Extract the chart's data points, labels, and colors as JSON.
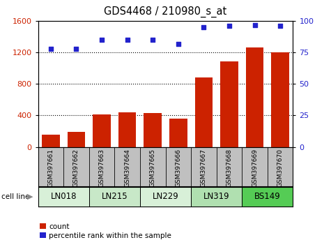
{
  "title": "GDS4468 / 210980_s_at",
  "samples": [
    "GSM397661",
    "GSM397662",
    "GSM397663",
    "GSM397664",
    "GSM397665",
    "GSM397666",
    "GSM397667",
    "GSM397668",
    "GSM397669",
    "GSM397670"
  ],
  "counts": [
    155,
    190,
    415,
    440,
    430,
    360,
    880,
    1090,
    1260,
    1205
  ],
  "percentile_ranks": [
    78,
    78,
    85,
    85,
    85,
    82,
    95,
    96,
    97,
    96
  ],
  "cell_lines": [
    {
      "name": "LN018",
      "start": 0,
      "end": 2,
      "color": "#d8f0d8"
    },
    {
      "name": "LN215",
      "start": 2,
      "end": 4,
      "color": "#c8e8c8"
    },
    {
      "name": "LN229",
      "start": 4,
      "end": 6,
      "color": "#d8f0d8"
    },
    {
      "name": "LN319",
      "start": 6,
      "end": 8,
      "color": "#b0e0b0"
    },
    {
      "name": "BS149",
      "start": 8,
      "end": 10,
      "color": "#55cc55"
    }
  ],
  "bar_color": "#cc2200",
  "dot_color": "#2222cc",
  "left_ylim": [
    0,
    1600
  ],
  "right_ylim": [
    0,
    100
  ],
  "left_yticks": [
    0,
    400,
    800,
    1200,
    1600
  ],
  "right_yticks": [
    0,
    25,
    50,
    75,
    100
  ],
  "grid_values": [
    400,
    800,
    1200
  ],
  "tick_label_color_left": "#cc2200",
  "tick_label_color_right": "#2222cc",
  "xlabel_area_color": "#c0c0c0",
  "cell_line_label": "cell line",
  "legend_count": "count",
  "legend_percentile": "percentile rank within the sample"
}
